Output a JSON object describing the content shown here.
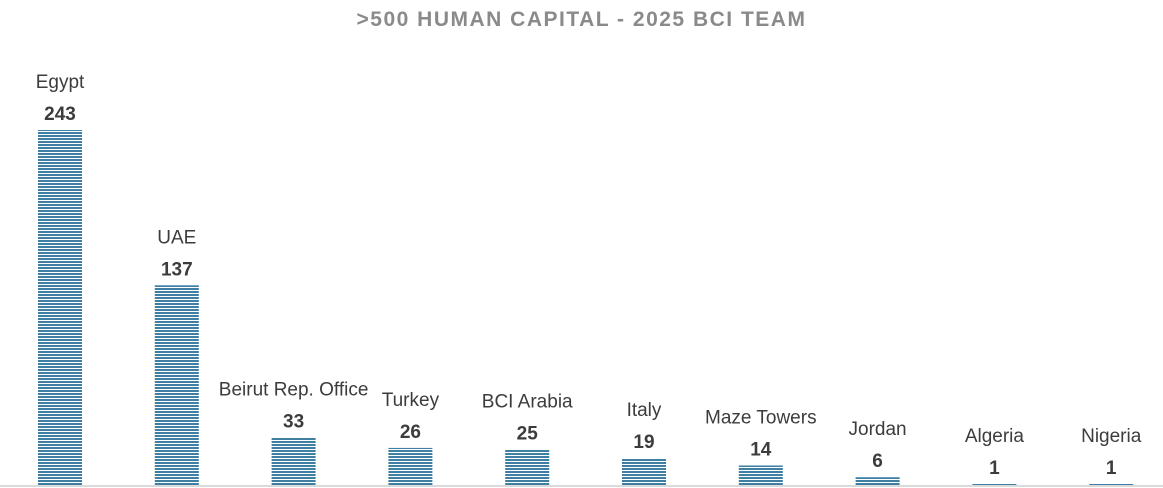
{
  "chart_data": {
    "type": "bar",
    "title": ">500 HUMAN CAPITAL - 2025 BCI TEAM",
    "categories": [
      "Egypt",
      "UAE",
      "Beirut Rep. Office",
      "Turkey",
      "BCI Arabia",
      "Italy",
      "Maze Towers",
      "Jordan",
      "Algeria",
      "Nigeria"
    ],
    "values": [
      243,
      137,
      33,
      26,
      25,
      19,
      14,
      6,
      1,
      1
    ],
    "xlabel": "",
    "ylabel": "",
    "ylim": [
      0,
      243
    ],
    "grid": false,
    "legend": "none",
    "bar_color": "#3f7fa3",
    "bar_stripe_color": "#ffffff"
  }
}
